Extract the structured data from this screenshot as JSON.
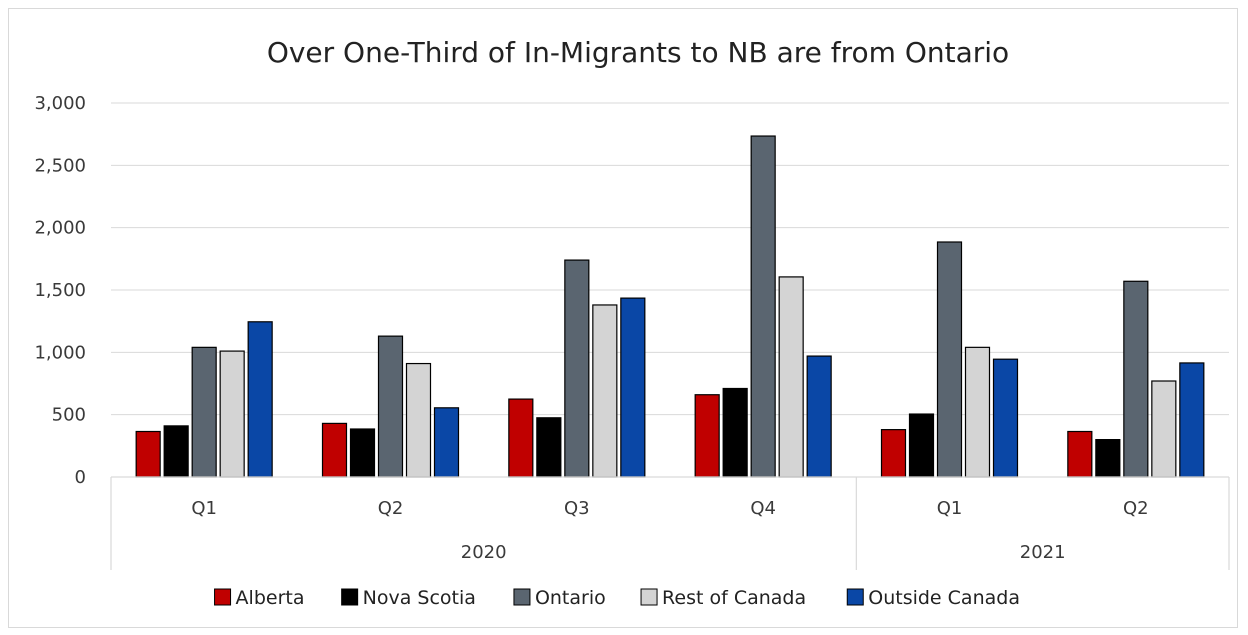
{
  "chart_data": {
    "type": "bar",
    "title": "Over One-Third of In-Migrants to NB are from Ontario",
    "xlabel": "",
    "ylabel": "",
    "ylim": [
      0,
      3000
    ],
    "yticks": [
      "0",
      "500",
      "1,000",
      "1,500",
      "2,000",
      "2,500",
      "3,000"
    ],
    "ytick_values": [
      0,
      500,
      1000,
      1500,
      2000,
      2500,
      3000
    ],
    "grid": true,
    "legend_position": "bottom",
    "categories": [
      "Q1",
      "Q2",
      "Q3",
      "Q4",
      "Q1",
      "Q2"
    ],
    "groups": [
      {
        "label": "2020",
        "count": 4
      },
      {
        "label": "2021",
        "count": 2
      }
    ],
    "series": [
      {
        "name": "Alberta",
        "color": "#c00000",
        "values": [
          365,
          430,
          625,
          660,
          380,
          365
        ]
      },
      {
        "name": "Nova Scotia",
        "color": "#000000",
        "values": [
          410,
          385,
          475,
          710,
          505,
          300
        ]
      },
      {
        "name": "Ontario",
        "color": "#5a6570",
        "values": [
          1040,
          1130,
          1740,
          2735,
          1885,
          1570
        ]
      },
      {
        "name": "Rest of Canada",
        "color": "#d4d4d4",
        "values": [
          1010,
          910,
          1380,
          1605,
          1040,
          770
        ]
      },
      {
        "name": "Outside Canada",
        "color": "#0a47a6",
        "values": [
          1245,
          555,
          1435,
          970,
          945,
          915
        ]
      }
    ]
  }
}
